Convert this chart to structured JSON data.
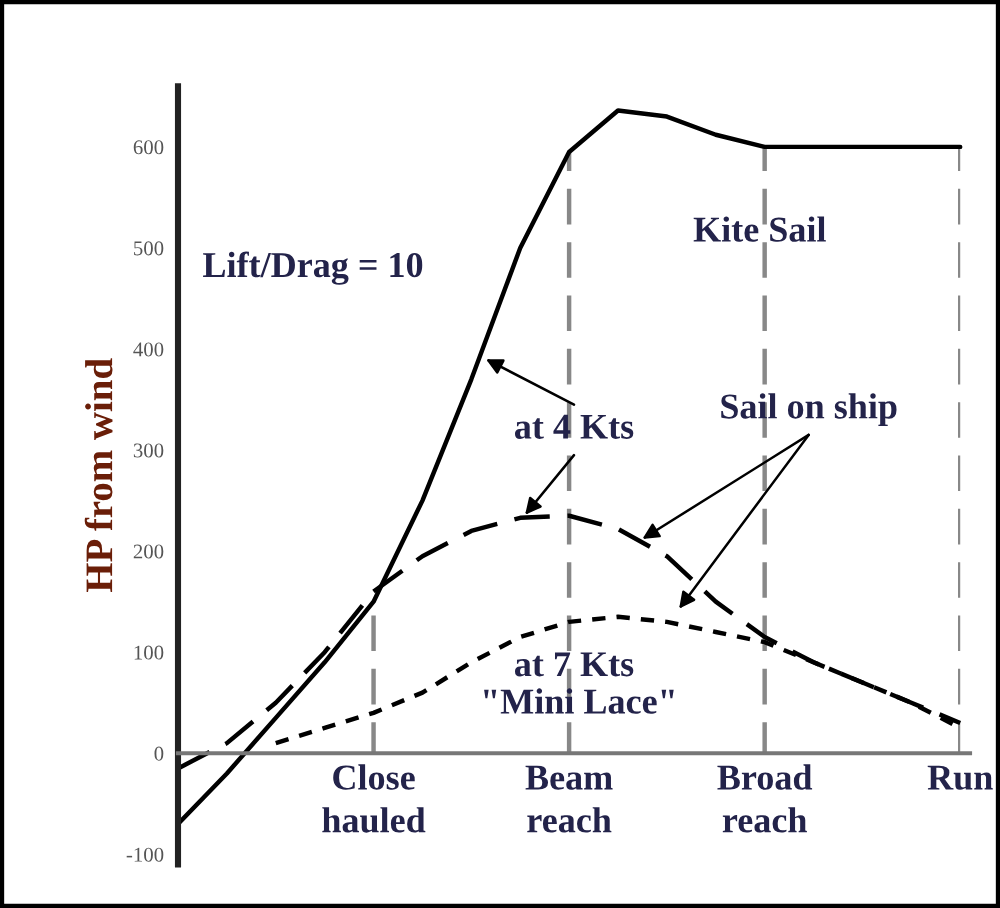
{
  "chart_data": {
    "type": "line",
    "ylabel": "HP from wind",
    "categories": [
      null,
      null,
      null,
      null,
      "Close\nhauled",
      null,
      null,
      null,
      "Beam\nreach",
      null,
      null,
      null,
      "Broad\nreach",
      null,
      null,
      null,
      "Run"
    ],
    "ylim": [
      -110,
      660
    ],
    "yticks": [
      -100,
      0,
      100,
      200,
      300,
      400,
      500,
      600
    ],
    "grid": "x",
    "series": [
      {
        "color": "#000000",
        "line_style": "solid",
        "values": [
          -70,
          -20,
          35,
          90,
          150,
          250,
          370,
          500,
          595,
          636,
          630,
          612,
          600,
          600,
          600,
          600,
          600
        ]
      },
      {
        "color": "#000000",
        "line_style": "dashed",
        "values": [
          -15,
          10,
          50,
          100,
          160,
          195,
          220,
          233,
          235,
          222,
          195,
          150,
          115,
          90,
          70,
          50,
          30
        ]
      },
      {
        "color": "#000000",
        "line_style": "dotted",
        "values": [
          null,
          null,
          10,
          25,
          40,
          60,
          90,
          115,
          130,
          135,
          130,
          120,
          110,
          90,
          70,
          50,
          25
        ]
      }
    ],
    "annotations": [
      {
        "text": "Lift/Drag = 10"
      },
      {
        "text": "Kite Sail"
      },
      {
        "text": "at 4 Kts"
      },
      {
        "text": "Sail on ship"
      },
      {
        "text": "at 7 Kts"
      },
      {
        "text": "\"Mini Lace\""
      }
    ]
  }
}
